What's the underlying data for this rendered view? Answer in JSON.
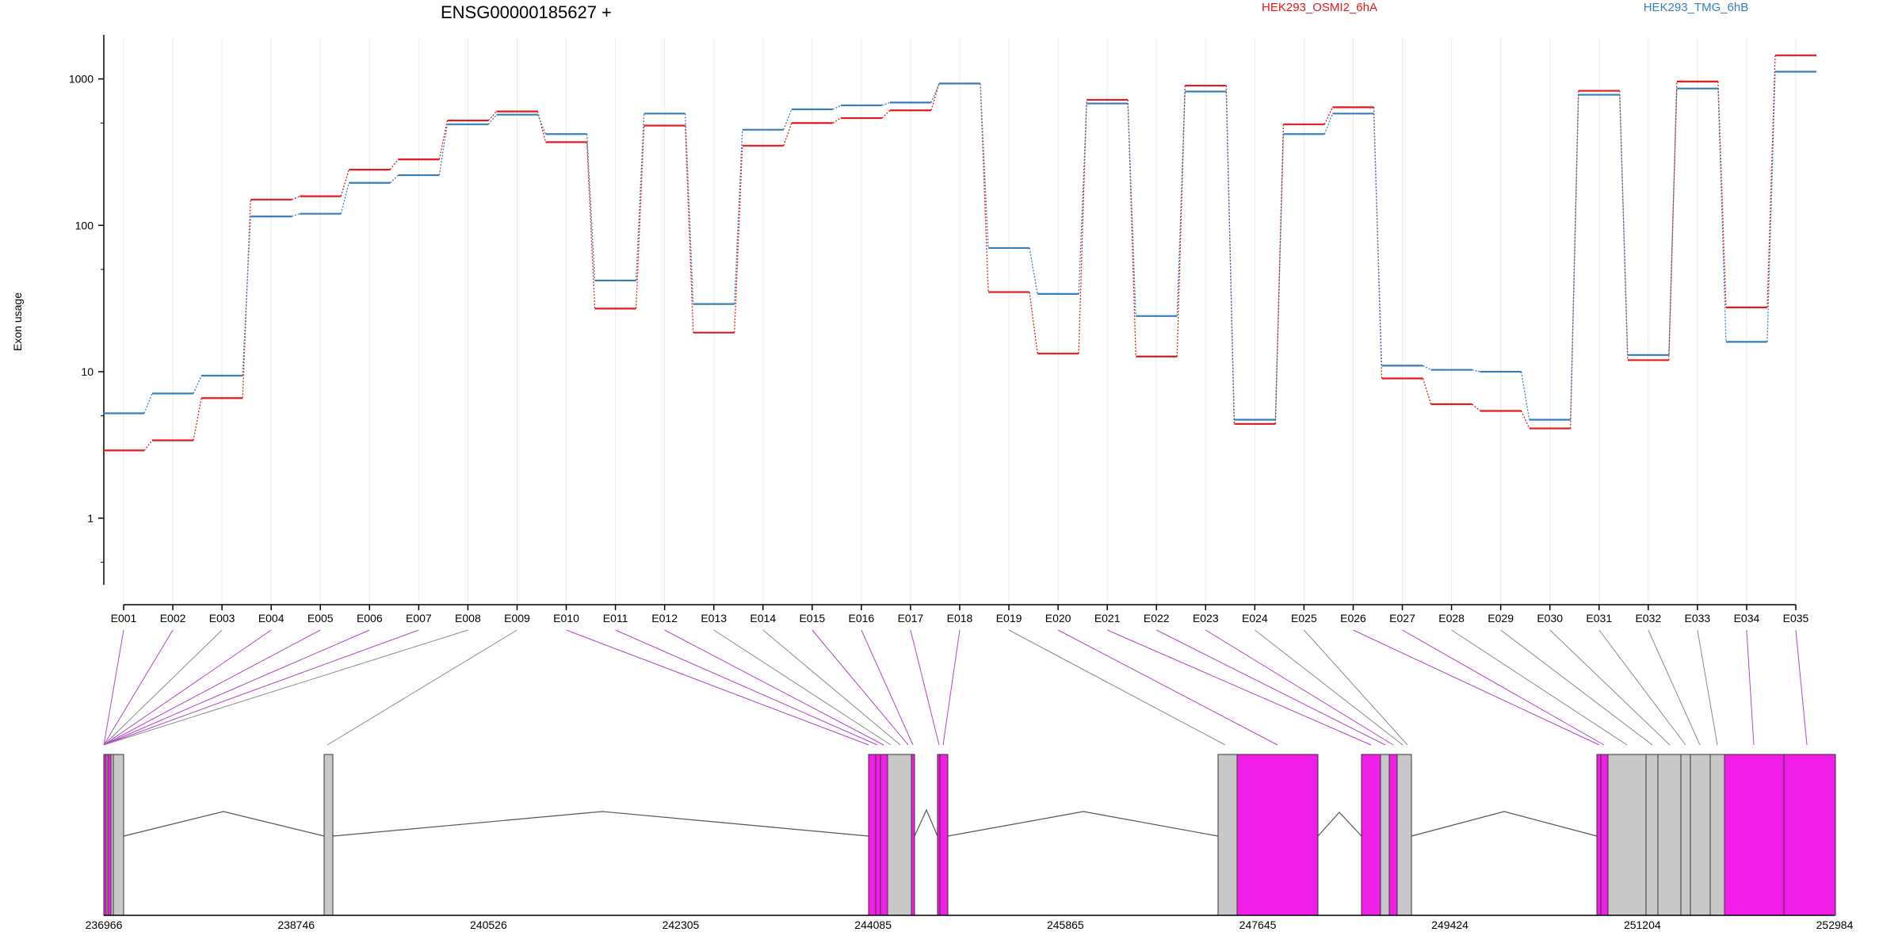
{
  "chart_data": {
    "type": "line",
    "title": "ENSG00000185627 +",
    "ylabel": "Exon usage",
    "xlabel": "",
    "y_scale": "log",
    "ylim": [
      0.35,
      2000
    ],
    "y_ticks": [
      1,
      10,
      100,
      1000
    ],
    "y_tick_labels": [
      "1",
      "10",
      "100",
      "1000"
    ],
    "grid": "vertical lines at each exon",
    "legend_placement": "top",
    "categories": [
      "E001",
      "E002",
      "E003",
      "E004",
      "E005",
      "E006",
      "E007",
      "E008",
      "E009",
      "E010",
      "E011",
      "E012",
      "E013",
      "E014",
      "E015",
      "E016",
      "E017",
      "E018",
      "E019",
      "E020",
      "E021",
      "E022",
      "E023",
      "E024",
      "E025",
      "E026",
      "E027",
      "E028",
      "E029",
      "E030",
      "E031",
      "E032",
      "E033",
      "E034",
      "E035"
    ],
    "series": [
      {
        "name": "HEK293_OSMI2_6hA",
        "color": "#e41a1c",
        "values": [
          2.9,
          3.4,
          6.6,
          150,
          158,
          240,
          282,
          520,
          600,
          370,
          27,
          480,
          18.5,
          350,
          500,
          540,
          610,
          930,
          35,
          13.3,
          720,
          12.7,
          900,
          4.4,
          490,
          640,
          9,
          6,
          5.4,
          4.1,
          830,
          12,
          960,
          27.5,
          1450
        ]
      },
      {
        "name": "HEK293_TMG_6hB",
        "color": "#377eb8",
        "values": [
          5.2,
          7.1,
          9.4,
          115,
          120,
          195,
          220,
          490,
          570,
          420,
          42,
          580,
          29,
          450,
          620,
          660,
          690,
          930,
          70,
          34,
          680,
          24,
          820,
          4.7,
          420,
          580,
          11,
          10.3,
          10,
          4.7,
          780,
          13,
          860,
          16,
          1120
        ]
      }
    ],
    "genomic_axis": {
      "tick_labels": [
        "236966",
        "238746",
        "240526",
        "242305",
        "244085",
        "245865",
        "247645",
        "249424",
        "251204",
        "252984"
      ],
      "range": [
        236966,
        252984
      ]
    },
    "exon_colors": {
      "significant": "#f01ee6",
      "normal": "#c8c8c8",
      "link_significant": "#b045c8",
      "link_normal": "#8a8a8a"
    }
  }
}
